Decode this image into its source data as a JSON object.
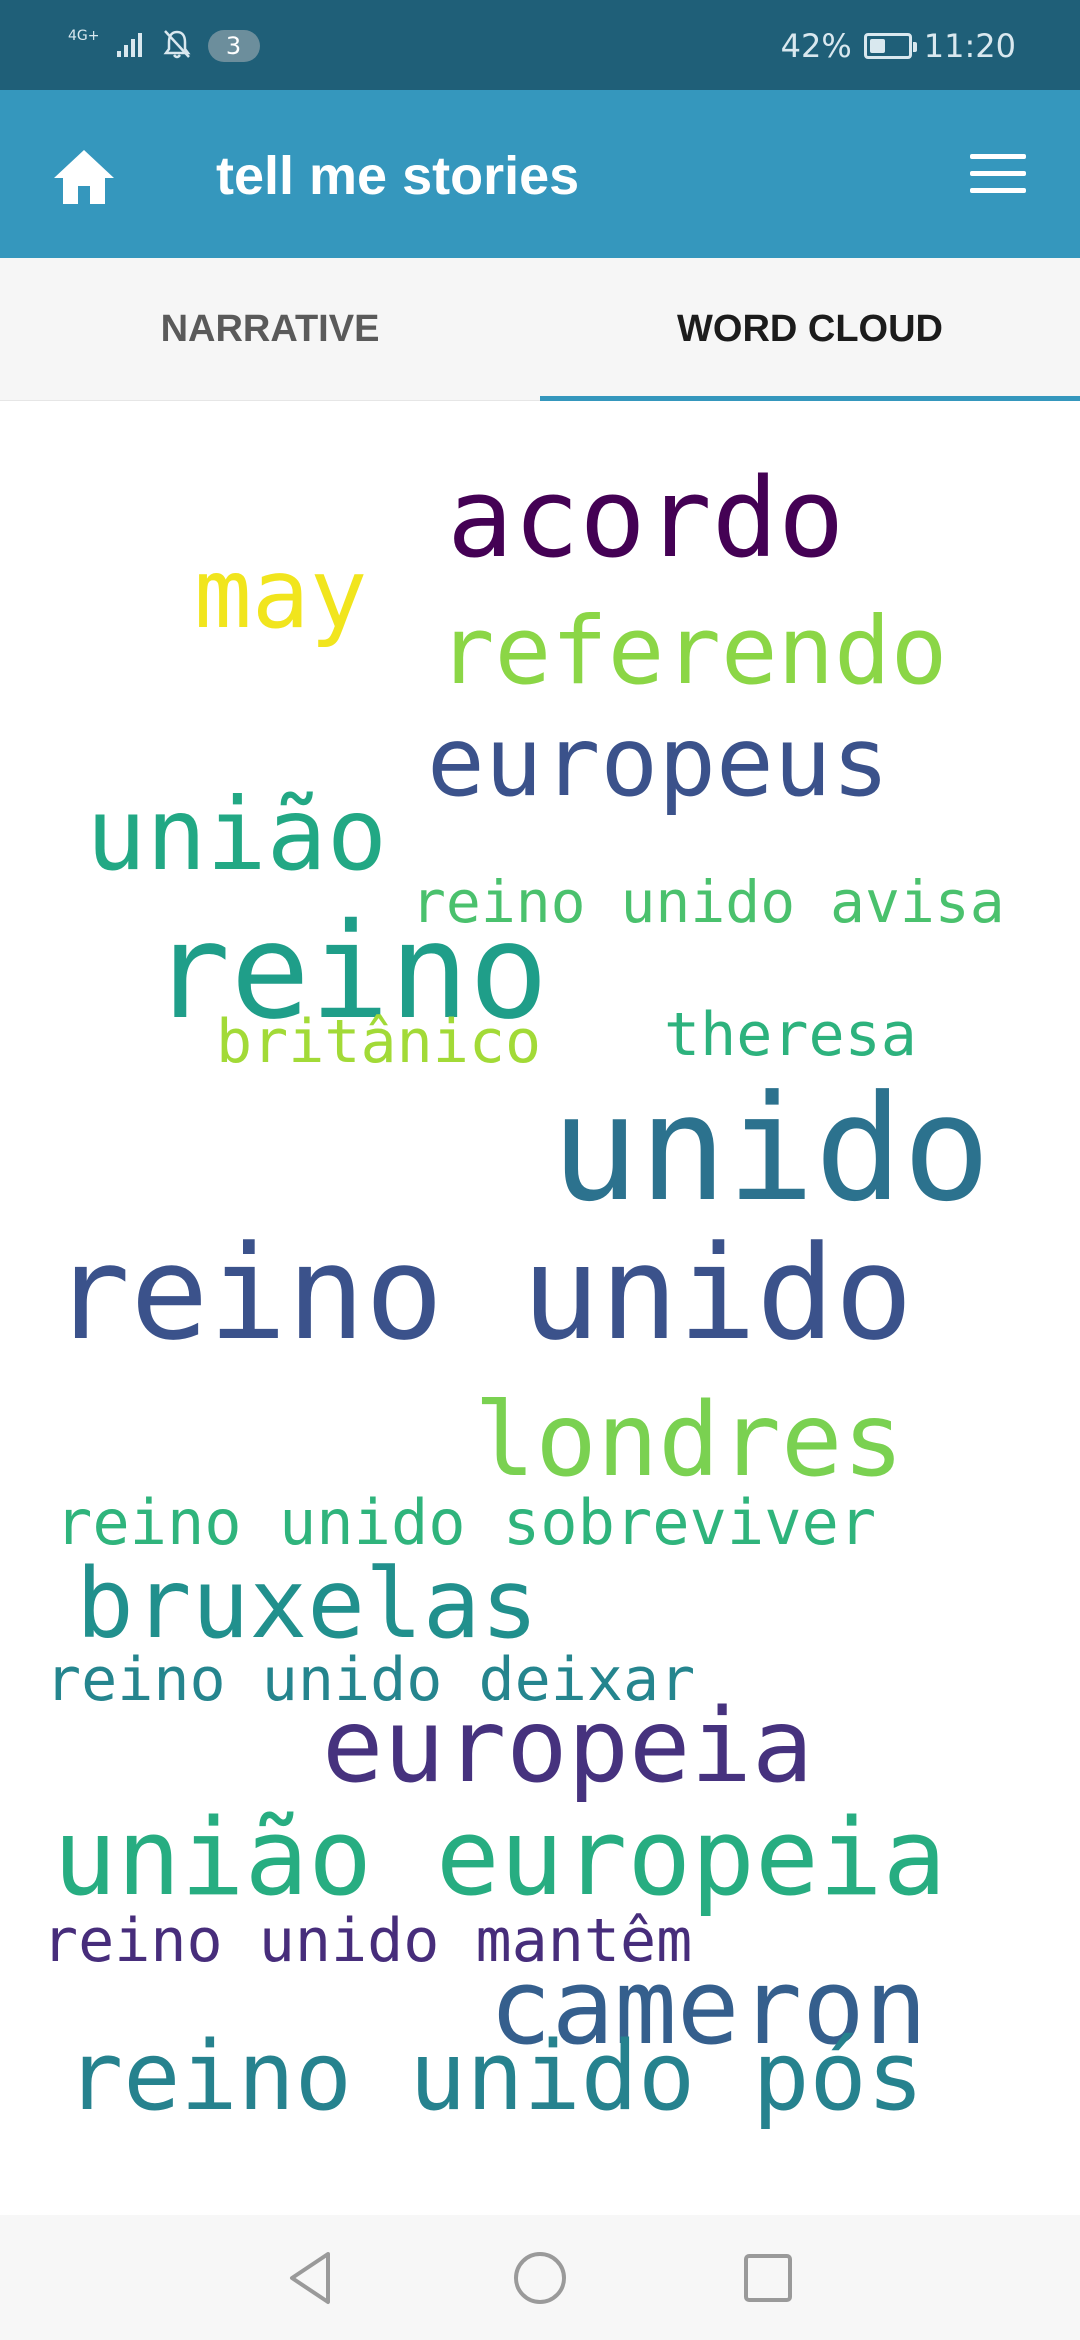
{
  "status_bar": {
    "network": "4G+",
    "notification_count": "3",
    "battery_text": "42%",
    "battery_level": 0.42,
    "time": "11:20"
  },
  "app_bar": {
    "title": "tell me stories",
    "home_icon": "home-icon",
    "menu_icon": "hamburger-menu-icon"
  },
  "tabs": [
    {
      "label": "NARRATIVE",
      "selected": false
    },
    {
      "label": "WORD CLOUD",
      "selected": true
    }
  ],
  "colors": {
    "status_bar": "#1f5f78",
    "app_bar": "#3597bd",
    "tab_indicator": "#3597bd"
  },
  "word_cloud": [
    {
      "text": "acordo",
      "color": "#440154"
    },
    {
      "text": "may",
      "color": "#f1e51d"
    },
    {
      "text": "referendo",
      "color": "#8bd646"
    },
    {
      "text": "europeus",
      "color": "#3b528b"
    },
    {
      "text": "união",
      "color": "#22a884"
    },
    {
      "text": "reino unido avisa",
      "color": "#4ac16d"
    },
    {
      "text": "reino",
      "color": "#1f9e89"
    },
    {
      "text": "britânico",
      "color": "#a2da37"
    },
    {
      "text": "theresa",
      "color": "#2db27d"
    },
    {
      "text": "unido",
      "color": "#2c728e"
    },
    {
      "text": "reino unido",
      "color": "#3b528b"
    },
    {
      "text": "londres",
      "color": "#7ad151"
    },
    {
      "text": "reino unido sobreviver",
      "color": "#2fb47c"
    },
    {
      "text": "bruxelas",
      "color": "#21908d"
    },
    {
      "text": "reino unido deixar",
      "color": "#25858e"
    },
    {
      "text": "europeia",
      "color": "#46327e"
    },
    {
      "text": "união europeia",
      "color": "#27ad81"
    },
    {
      "text": "reino unido mantêm",
      "color": "#472d7b"
    },
    {
      "text": "cameron",
      "color": "#355f8d"
    },
    {
      "text": "reino unido pós",
      "color": "#26828e"
    }
  ],
  "nav_bar": {
    "back_icon": "back-triangle-icon",
    "home_icon": "home-circle-icon",
    "recents_icon": "recents-square-icon"
  }
}
